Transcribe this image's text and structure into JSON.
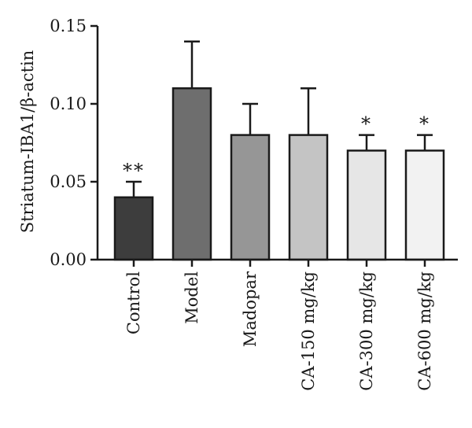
{
  "chart_data": {
    "type": "bar",
    "title": "",
    "xlabel": "",
    "ylabel": "Striatum-IBA1/β-actin",
    "ylim": [
      0,
      0.15
    ],
    "yticks": [
      "0.00",
      "0.05",
      "0.10",
      "0.15"
    ],
    "categories": [
      "Control",
      "Model",
      "Madopar",
      "CA-150 mg/kg",
      "CA-300 mg/kg",
      "CA-600 mg/kg"
    ],
    "values": [
      0.04,
      0.11,
      0.08,
      0.08,
      0.07,
      0.07
    ],
    "error_upper": [
      0.01,
      0.03,
      0.02,
      0.03,
      0.01,
      0.01
    ],
    "significance": [
      "**",
      "",
      "",
      "",
      "*",
      "*"
    ],
    "colors": [
      "#3d3d3d",
      "#6e6e6e",
      "#969696",
      "#c4c4c4",
      "#e6e6e6",
      "#f2f2f2"
    ],
    "grid": false,
    "legend": "none"
  }
}
